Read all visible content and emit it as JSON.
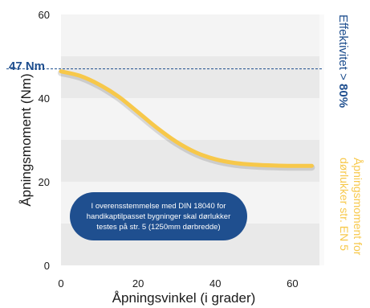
{
  "chart_data": {
    "type": "line",
    "xlabel": "Åpningsvinkel (i grader)",
    "ylabel": "Åpningsmoment (Nm)",
    "xlim": [
      0,
      67
    ],
    "ylim": [
      0,
      60
    ],
    "x_ticks": [
      "0",
      "20",
      "40",
      "60"
    ],
    "y_ticks": [
      "0",
      "20",
      "40",
      "60"
    ],
    "grid": "horizontal bands",
    "series": [
      {
        "color": "#f7c84a",
        "x": [
          0,
          5,
          10,
          15,
          20,
          25,
          30,
          35,
          40,
          45,
          50,
          55,
          60,
          65
        ],
        "values": [
          46.4,
          45.3,
          43.2,
          40.3,
          36.6,
          32.8,
          29.5,
          27.0,
          25.4,
          24.5,
          24.1,
          23.9,
          23.8,
          23.8
        ]
      }
    ],
    "reference_line": {
      "value": 47,
      "label": "47 Nm",
      "color": "#1f4f8f"
    },
    "right_labels": {
      "efficiency_prefix": "Effektivitet > ",
      "efficiency_value": "80%",
      "legend_line1": "Åpningsmoment for",
      "legend_line2": "dørlukker str. EN 5"
    },
    "note": "I overensstemmelse med DIN 18040 for handikaptilpasset bygninger skal dørlukker testes på str. 5 (1250mm dørbredde)"
  }
}
